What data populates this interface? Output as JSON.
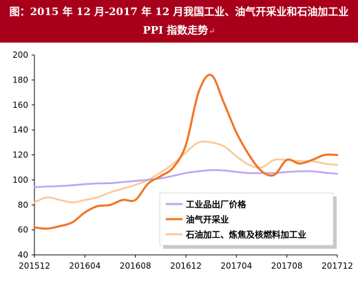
{
  "header": {
    "title": "图：2015 年 12 月-2017 年 12 月我国工业、油气开采业和石油加工业 PPI 指数走势",
    "mark": "↵"
  },
  "chart_data": {
    "type": "line",
    "title": "图：2015 年 12 月-2017 年 12 月我国工业、油气开采业和石油加工业 PPI 指数走势",
    "xlabel": "",
    "ylabel": "",
    "x_ticks": [
      "201512",
      "201604",
      "201608",
      "201612",
      "201704",
      "201708",
      "201712"
    ],
    "y_ticks": [
      "40",
      "60",
      "80",
      "100",
      "120",
      "140",
      "160",
      "180",
      "200"
    ],
    "ylim": [
      40,
      200
    ],
    "grid": false,
    "legend_position": "bottom-right",
    "x": [
      "201512",
      "201601",
      "201602",
      "201603",
      "201604",
      "201605",
      "201606",
      "201607",
      "201608",
      "201609",
      "201610",
      "201611",
      "201612",
      "201701",
      "201702",
      "201703",
      "201704",
      "201705",
      "201706",
      "201707",
      "201708",
      "201709",
      "201710",
      "201711",
      "201712"
    ],
    "series": [
      {
        "name": "工业品出厂价格",
        "color": "#b9a8f2",
        "values": [
          94.1,
          94.7,
          95.1,
          95.7,
          96.6,
          97.2,
          97.4,
          98.3,
          99.2,
          100.1,
          101.2,
          103.3,
          105.5,
          106.9,
          107.8,
          107.6,
          106.4,
          105.5,
          105.5,
          105.5,
          106.3,
          106.9,
          106.9,
          105.8,
          104.9
        ]
      },
      {
        "name": "油气开采业",
        "color": "#f07524",
        "values": [
          62,
          61,
          63,
          66,
          74,
          79,
          80,
          84,
          84,
          97,
          103,
          110,
          128,
          170,
          184,
          162,
          138,
          120,
          107,
          104,
          116,
          113,
          116,
          120,
          120
        ]
      },
      {
        "name": "石油加工、炼焦及核燃料加工业",
        "color": "#fbc89a",
        "values": [
          82,
          86,
          84,
          82,
          84,
          86,
          90,
          93,
          96,
          100,
          106,
          113,
          122,
          130,
          130,
          127,
          119,
          112,
          110,
          116,
          116,
          115,
          115,
          113,
          112
        ]
      }
    ]
  }
}
